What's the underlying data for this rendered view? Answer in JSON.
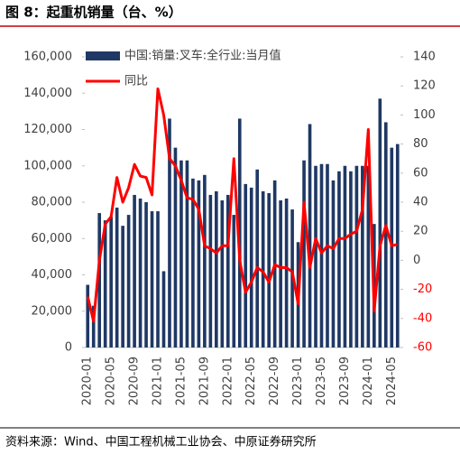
{
  "chart_data": {
    "type": "bar_line",
    "title": "图 8：起重机销量（台、%）",
    "source": "资料来源：Wind、中国工程机械工业协会、中原证券研究所",
    "categories": [
      "2020-01",
      null,
      null,
      null,
      "2020-05",
      null,
      null,
      null,
      "2020-09",
      null,
      null,
      null,
      "2021-01",
      null,
      null,
      null,
      "2021-05",
      null,
      null,
      null,
      "2021-09",
      null,
      null,
      null,
      "2022-01",
      null,
      null,
      null,
      "2022-05",
      null,
      null,
      null,
      "2022-09",
      null,
      null,
      null,
      "2023-01",
      null,
      null,
      null,
      "2023-05",
      null,
      null,
      null,
      "2023-09",
      null,
      null,
      null,
      "2024-01",
      null,
      null,
      null,
      "2024-05",
      null
    ],
    "series": [
      {
        "name": "中国:销量:叉车:全行业:当月值",
        "color": "#1f3864",
        "axis": "y",
        "values": [
          34500,
          23000,
          74000,
          70000,
          72000,
          77000,
          67000,
          73000,
          84000,
          82000,
          80000,
          75000,
          75000,
          42000,
          126000,
          110000,
          103000,
          103000,
          93000,
          92000,
          95000,
          84000,
          86000,
          81000,
          84000,
          73000,
          126000,
          90000,
          88000,
          98000,
          86000,
          85000,
          92000,
          81000,
          82000,
          76000,
          58000,
          103000,
          123000,
          100000,
          101000,
          101000,
          92000,
          97000,
          100000,
          97000,
          100000,
          100000,
          100000,
          68000,
          137000,
          124000,
          110000,
          112000
        ]
      },
      {
        "name": "同比",
        "color": "#ff0000",
        "axis": "y2",
        "values": [
          -25,
          -42,
          0,
          25,
          30,
          57,
          40,
          50,
          66,
          58,
          57,
          45,
          118,
          100,
          70,
          65,
          55,
          43,
          42,
          35,
          10,
          8,
          5,
          10,
          10,
          70,
          0,
          -22,
          -15,
          -5,
          -8,
          -15,
          -3,
          -5,
          -5,
          -8,
          -30,
          40,
          -5,
          15,
          5,
          10,
          8,
          15,
          15,
          18,
          20,
          35,
          90,
          -35,
          10,
          24,
          10,
          11
        ]
      }
    ],
    "ylim": [
      0,
      160000
    ],
    "yticks": [
      0,
      {
        "value": 20000,
        "label": "20,000"
      },
      {
        "value": 40000,
        "label": "40,000"
      },
      {
        "value": 60000,
        "label": "60,000"
      },
      {
        "value": 80000,
        "label": "80,000"
      },
      {
        "value": 100000,
        "label": "100,000"
      },
      {
        "value": 120000,
        "label": "120,000"
      },
      {
        "value": 140000,
        "label": "140,000"
      },
      {
        "value": 160000,
        "label": "160,000"
      }
    ],
    "y2lim": [
      -60,
      140
    ],
    "y2ticks": [
      -60,
      -40,
      -20,
      0,
      20,
      40,
      60,
      80,
      100,
      120,
      140
    ]
  }
}
